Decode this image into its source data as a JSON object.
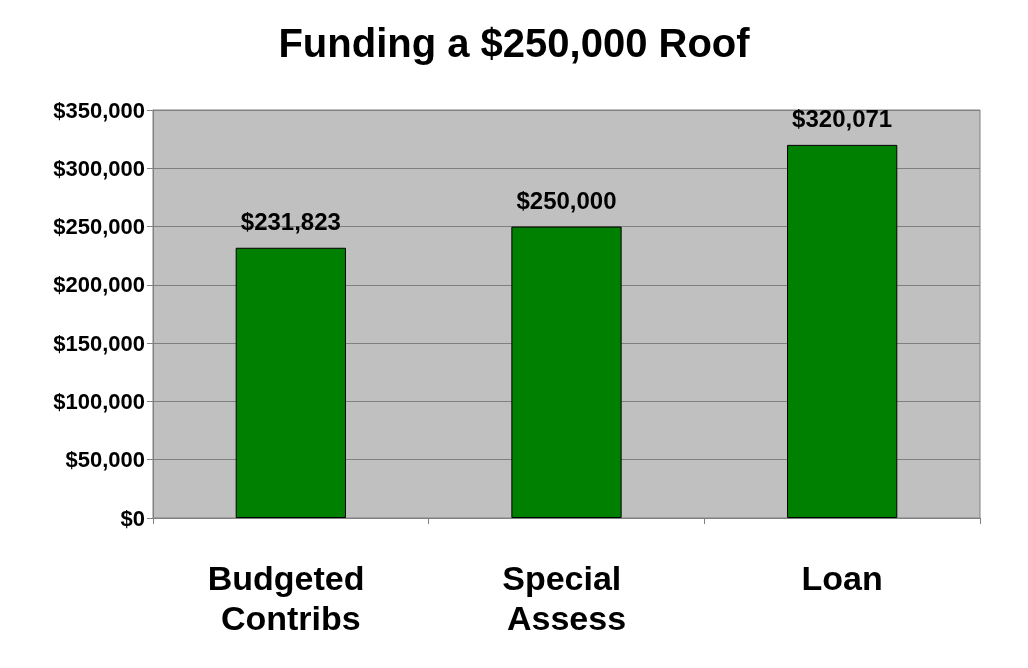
{
  "chart_data": {
    "type": "bar",
    "title": "Funding a $250,000 Roof",
    "categories": [
      "Budgeted Contribs",
      "Special Assess",
      "Loan"
    ],
    "values": [
      231823,
      250000,
      320071
    ],
    "value_labels": [
      "$231,823",
      "$250,000",
      "$320,071"
    ],
    "color": "#008000",
    "ylim": [
      0,
      350000
    ],
    "yticks": [
      {
        "value": 0,
        "label": "$0"
      },
      {
        "value": 50000,
        "label": "$50,000"
      },
      {
        "value": 100000,
        "label": "$100,000"
      },
      {
        "value": 150000,
        "label": "$150,000"
      },
      {
        "value": 200000,
        "label": "$200,000"
      },
      {
        "value": 250000,
        "label": "$250,000"
      },
      {
        "value": 300000,
        "label": "$300,000"
      },
      {
        "value": 350000,
        "label": "$350,000"
      }
    ],
    "grid": "y"
  }
}
